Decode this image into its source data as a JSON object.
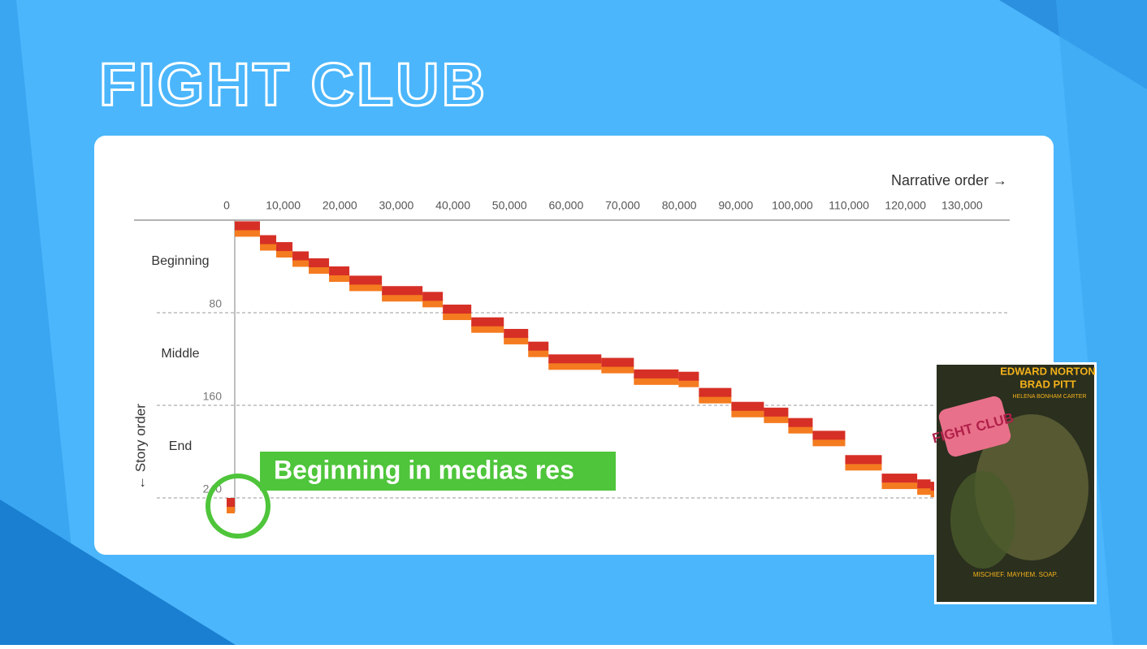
{
  "title": "FIGHT CLUB",
  "chart_data": {
    "type": "narrative",
    "x_label": "Narrative order →",
    "y_label": "← Story order",
    "sections": [
      "Beginning",
      "Middle",
      "End"
    ],
    "xlim": [
      0,
      140000
    ],
    "xticks": [
      0,
      {
        "value": 10000,
        "label": "10,000"
      },
      {
        "value": 20000,
        "label": "20,000"
      },
      {
        "value": 30000,
        "label": "30,000"
      },
      {
        "value": 40000,
        "label": "40,000"
      },
      {
        "value": 50000,
        "label": "50,000"
      },
      {
        "value": 60000,
        "label": "60,000"
      },
      {
        "value": 70000,
        "label": "70,000"
      },
      {
        "value": 80000,
        "label": "80,000"
      },
      {
        "value": 90000,
        "label": "90,000"
      },
      {
        "value": 100000,
        "label": "100,000"
      },
      {
        "value": 110000,
        "label": "110,000"
      },
      {
        "value": 120000,
        "label": "120,000"
      },
      {
        "value": 130000,
        "label": "130,000"
      }
    ],
    "ylim": [
      0,
      240
    ],
    "yticks": [
      80,
      160,
      240
    ],
    "color": "#d62f26",
    "x": [
      0,
      1437,
      5890,
      8764,
      11638,
      14511,
      18103,
      21695,
      27443,
      34626,
      38218,
      43247,
      48994,
      53305,
      56897,
      66236,
      71983,
      79885,
      83477,
      89224,
      94971,
      99282,
      103592,
      109339,
      115805,
      122069,
      124425
    ],
    "values": [
      240,
      1,
      13,
      19,
      27,
      33,
      40,
      48,
      57,
      62,
      73,
      84,
      94,
      105,
      116,
      119,
      129,
      131,
      145,
      157,
      162,
      171,
      182,
      203,
      219,
      224,
      226
    ],
    "annotation": "Beginning in medias res"
  },
  "poster": {
    "actors": "EDWARD NORTON",
    "actor2": "BRAD PITT",
    "actor3": "HELENA BONHAM CARTER",
    "title": "FIGHT CLUB",
    "tagline": "MISCHIEF. MAYHEM. SOAP."
  }
}
